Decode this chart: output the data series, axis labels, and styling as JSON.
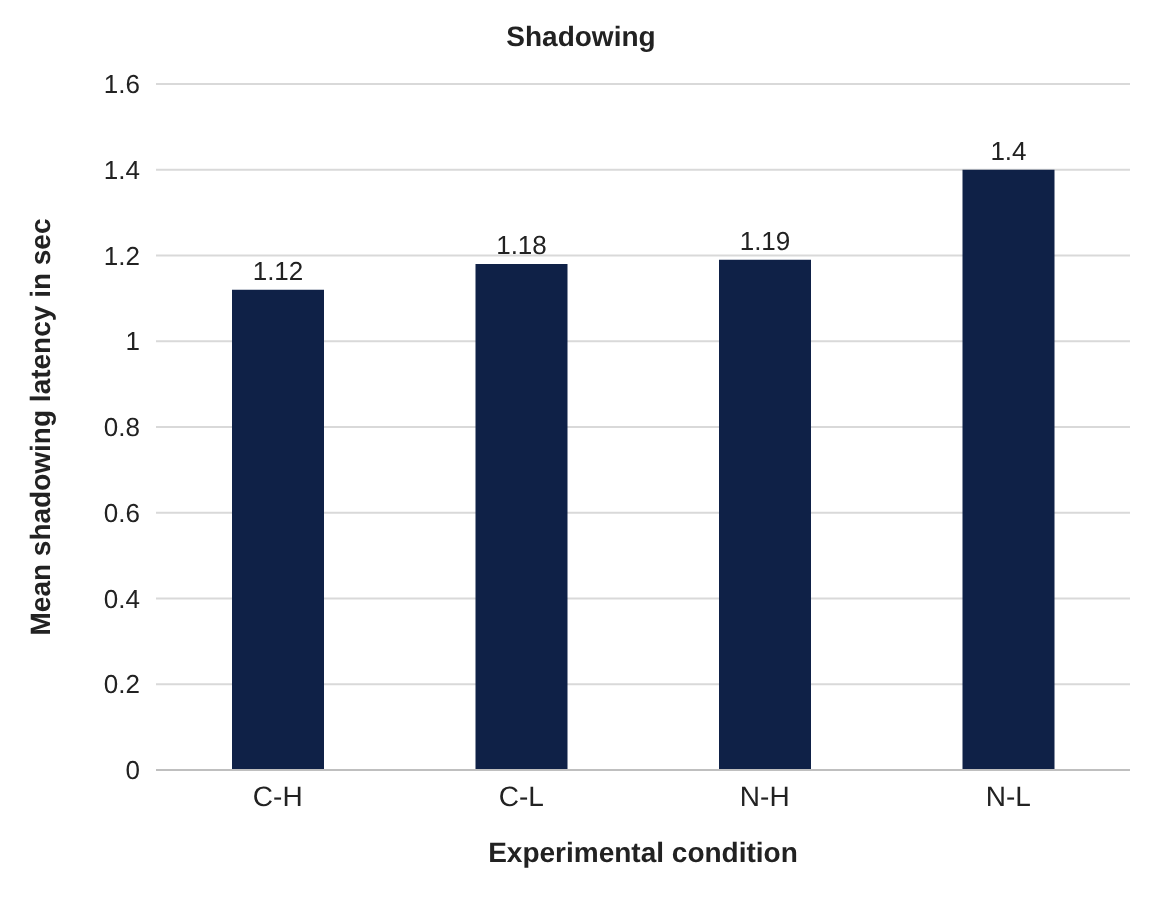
{
  "chart_data": {
    "type": "bar",
    "title": "Shadowing",
    "xlabel": "Experimental condition",
    "ylabel": "Mean shadowing latency in sec",
    "categories": [
      "C-H",
      "C-L",
      "N-H",
      "N-L"
    ],
    "values": [
      1.12,
      1.18,
      1.19,
      1.4
    ],
    "color": "#0f2147",
    "ylim": [
      0,
      1.6
    ],
    "yticks": [
      0,
      0.2,
      0.4,
      0.6,
      0.8,
      1,
      1.2,
      1.4,
      1.6
    ],
    "grid": "y",
    "data_labels": true
  }
}
